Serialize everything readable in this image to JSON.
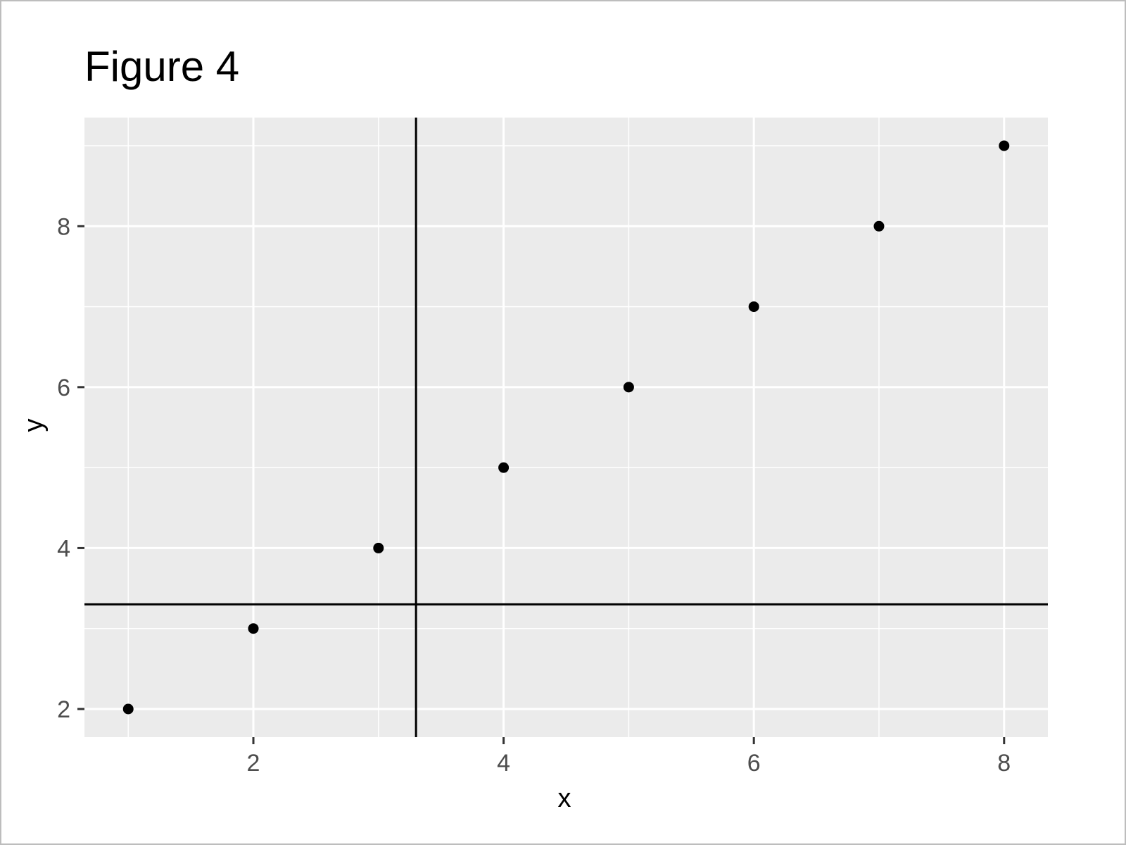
{
  "chart_data": {
    "type": "scatter",
    "title": "Figure 4",
    "xlabel": "x",
    "ylabel": "y",
    "xlim": [
      0.65,
      8.35
    ],
    "ylim": [
      1.65,
      9.35
    ],
    "x_ticks": [
      2,
      4,
      6,
      8
    ],
    "y_ticks": [
      2,
      4,
      6,
      8
    ],
    "x_minor": [
      1,
      3,
      5,
      7
    ],
    "y_minor": [
      3,
      5,
      7,
      9
    ],
    "grid": true,
    "points": [
      {
        "x": 1,
        "y": 2
      },
      {
        "x": 2,
        "y": 3
      },
      {
        "x": 3,
        "y": 4
      },
      {
        "x": 4,
        "y": 5
      },
      {
        "x": 5,
        "y": 6
      },
      {
        "x": 6,
        "y": 7
      },
      {
        "x": 7,
        "y": 8
      },
      {
        "x": 8,
        "y": 9
      }
    ],
    "vline": 3.3,
    "hline": 3.3,
    "colors": {
      "panel": "#ebebeb",
      "grid": "#ffffff",
      "point": "#000000",
      "refline": "#000000",
      "tick": "#333333"
    }
  }
}
